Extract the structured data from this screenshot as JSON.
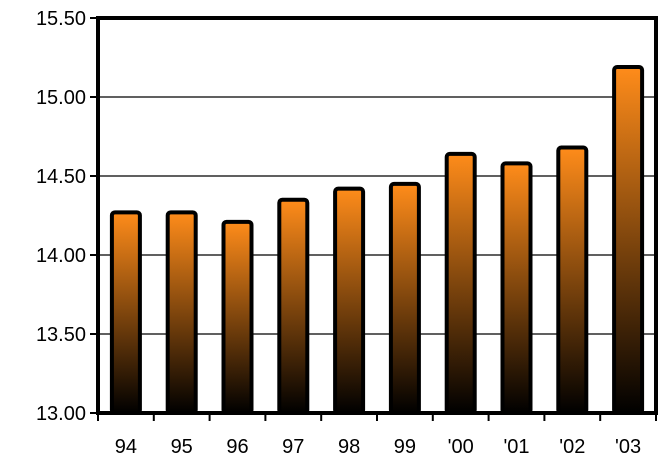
{
  "chart_data": {
    "type": "bar",
    "categories": [
      "94",
      "95",
      "96",
      "97",
      "98",
      "99",
      "'00",
      "'01",
      "'02",
      "'03"
    ],
    "values": [
      14.27,
      14.27,
      14.21,
      14.35,
      14.42,
      14.45,
      14.64,
      14.58,
      14.68,
      15.19
    ],
    "yticks": [
      "13.00",
      "13.50",
      "14.00",
      "14.50",
      "15.00",
      "15.50"
    ],
    "ylim": [
      13.0,
      15.5
    ],
    "title": "",
    "xlabel": "",
    "ylabel": "",
    "grid": "horizontal",
    "legend": "none",
    "colors": {
      "bar_top": "#ff8c1a",
      "bar_bottom": "#000000",
      "grid": "#000000",
      "frame": "#000000"
    }
  }
}
